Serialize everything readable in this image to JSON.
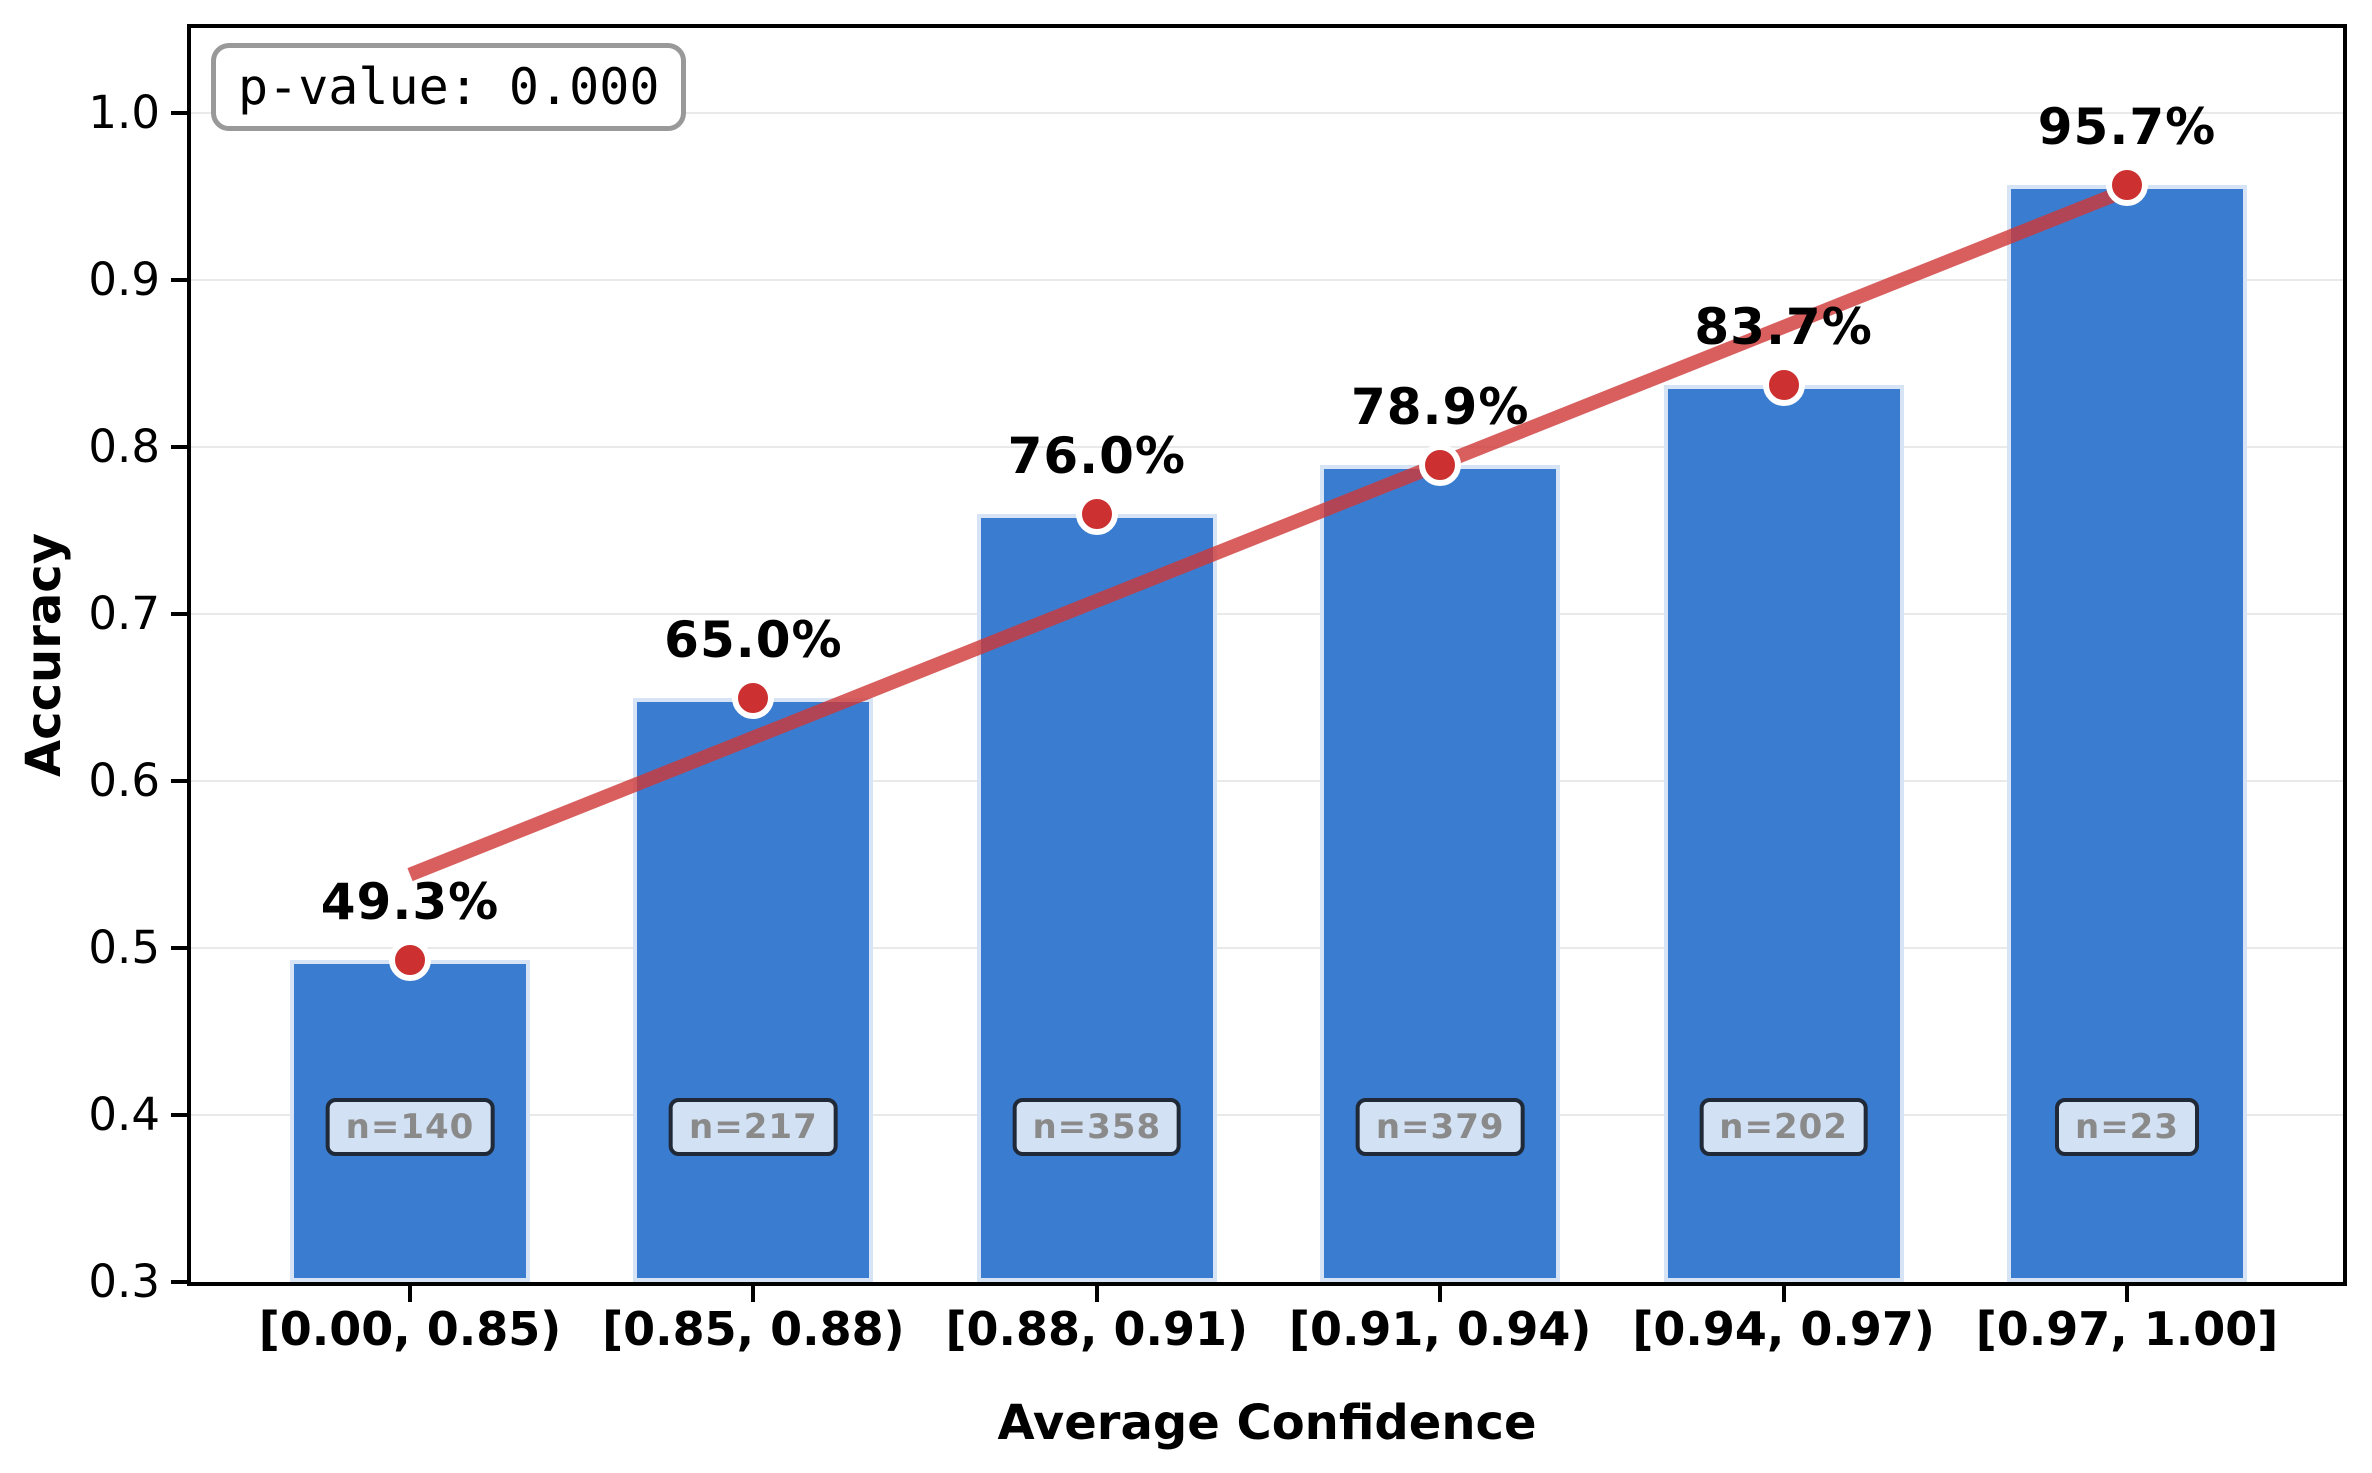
{
  "chart_data": {
    "type": "bar",
    "title": "",
    "xlabel": "Average Confidence",
    "ylabel": "Accuracy",
    "categories": [
      "[0.00, 0.85)",
      "[0.85, 0.88)",
      "[0.88, 0.91)",
      "[0.91, 0.94)",
      "[0.94, 0.97)",
      "[0.97, 1.00]"
    ],
    "values": [
      0.493,
      0.65,
      0.76,
      0.789,
      0.837,
      0.957
    ],
    "value_labels": [
      "49.3%",
      "65.0%",
      "76.0%",
      "78.9%",
      "83.7%",
      "95.7%"
    ],
    "counts": [
      140,
      217,
      358,
      379,
      202,
      23
    ],
    "count_labels": [
      "n=140",
      "n=217",
      "n=358",
      "n=379",
      "n=202",
      "n=23"
    ],
    "annotation": "p-value: 0.000",
    "yticks": [
      1.0,
      0.9,
      0.8,
      0.7,
      0.6,
      0.5,
      0.4,
      0.3
    ],
    "ytick_labels": [
      "1.0",
      "0.9",
      "0.8",
      "0.7",
      "0.6",
      "0.5",
      "0.4",
      "0.3"
    ],
    "ylim": [
      0.3,
      1.051
    ],
    "grid": "horizontal",
    "legend": "none",
    "trendline": {
      "type": "linear",
      "value_at_first_bin": 0.544,
      "value_at_last_bin": 0.954
    },
    "colors": {
      "bar_fill": "#3a7dd0",
      "bar_edge": "#d6e4f5",
      "dot_fill": "#cc3030",
      "dot_edge": "#ffffff",
      "trend_line": "#cf3737",
      "trend_opacity": 0.8,
      "grid_line": "#e9e9e9",
      "spine": "#000000",
      "count_box_bg": "#d2e1f3",
      "count_box_border": "#1f2937",
      "count_text": "#8a8a8a",
      "annotation_border": "#999999"
    }
  }
}
